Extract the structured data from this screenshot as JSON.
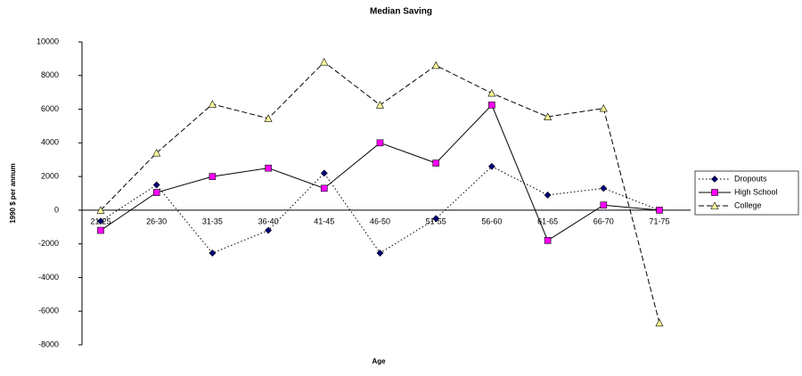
{
  "chart_data": {
    "type": "line",
    "title": "Median Saving",
    "x_label": "Age",
    "y_label": "1990 $ per annum",
    "categories": [
      "21-25",
      "26-30",
      "31-35",
      "36-40",
      "41-45",
      "46-50",
      "51-55",
      "56-60",
      "61-65",
      "66-70",
      "71-75"
    ],
    "series": [
      {
        "name": "Dropouts",
        "color": "#000080",
        "line_style": "dotted",
        "marker": "diamond",
        "values": [
          -650,
          1500,
          -2550,
          -1200,
          2200,
          -2550,
          -500,
          2600,
          900,
          1300,
          0
        ]
      },
      {
        "name": "High School",
        "color": "#ff00ff",
        "line_style": "solid",
        "marker": "square",
        "values": [
          -1200,
          1050,
          2000,
          2500,
          1300,
          4000,
          2800,
          6250,
          -1800,
          300,
          0
        ]
      },
      {
        "name": "College",
        "color": "#ffff99",
        "line_style": "dashed",
        "marker": "triangle",
        "values": [
          0,
          3400,
          6300,
          5450,
          8800,
          6250,
          8600,
          6950,
          5550,
          6050,
          -6700
        ]
      }
    ],
    "ylim": [
      -8000,
      10000
    ],
    "yticks": [
      -8000,
      -6000,
      -4000,
      -2000,
      0,
      2000,
      4000,
      6000,
      8000,
      10000
    ],
    "grid": false,
    "legend": "right"
  }
}
